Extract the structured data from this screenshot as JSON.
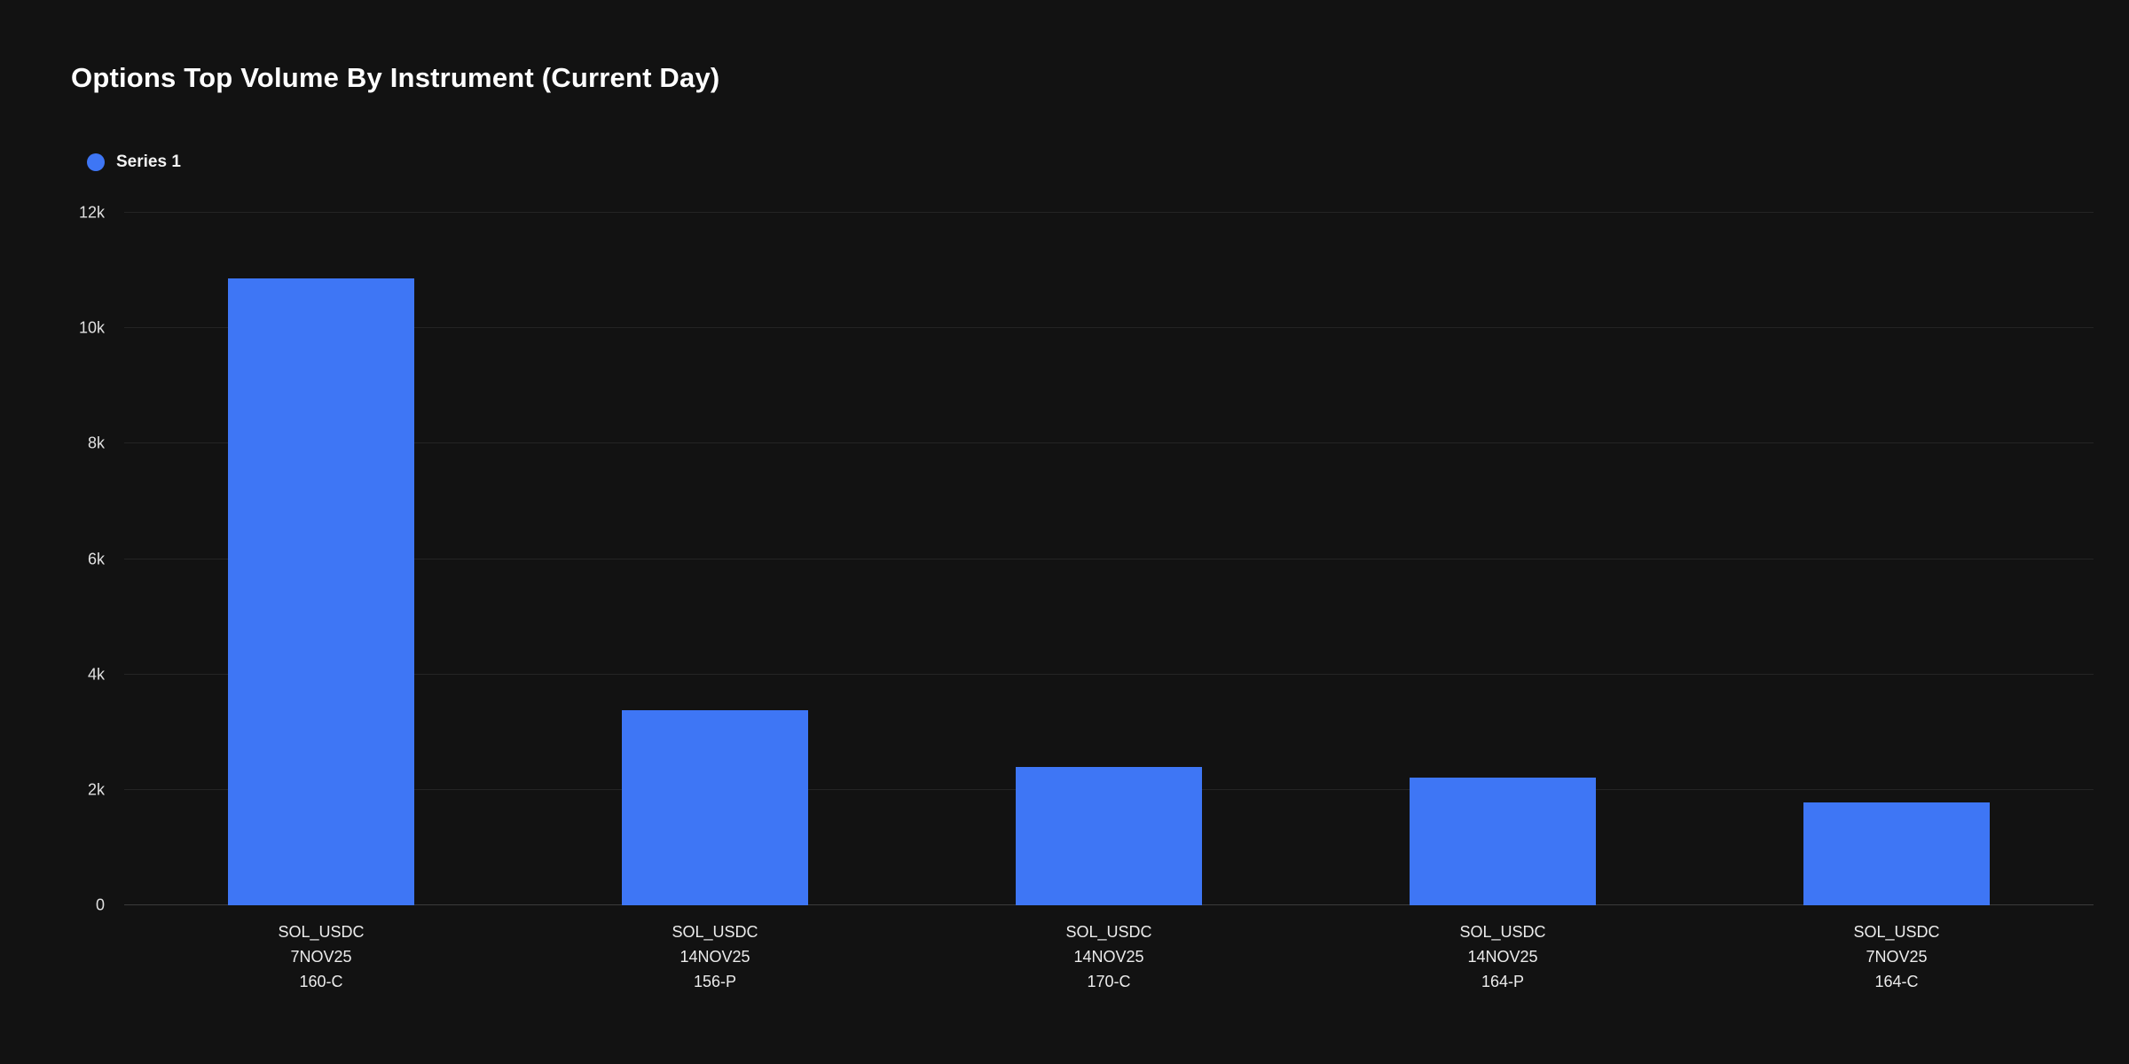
{
  "page": {
    "background": "#121212"
  },
  "header": {
    "title": "Options Top Volume By Instrument (Current Day)"
  },
  "legend": {
    "items": [
      {
        "label": "Series 1",
        "color": "#3E76F5"
      }
    ]
  },
  "chart_data": {
    "type": "bar",
    "title": "Options Top Volume By Instrument (Current Day)",
    "categories": [
      [
        "SOL_USDC",
        "7NOV25",
        "160-C"
      ],
      [
        "SOL_USDC",
        "14NOV25",
        "156-P"
      ],
      [
        "SOL_USDC",
        "14NOV25",
        "170-C"
      ],
      [
        "SOL_USDC",
        "14NOV25",
        "164-P"
      ],
      [
        "SOL_USDC",
        "7NOV25",
        "164-C"
      ]
    ],
    "series": [
      {
        "name": "Series 1",
        "color": "#3E76F5",
        "values": [
          10860,
          3380,
          2400,
          2210,
          1780
        ]
      }
    ],
    "xlabel": "",
    "ylabel": "",
    "ylim": [
      0,
      12000
    ],
    "yticks": [
      {
        "value": 0,
        "label": "0"
      },
      {
        "value": 2000,
        "label": "2k"
      },
      {
        "value": 4000,
        "label": "4k"
      },
      {
        "value": 6000,
        "label": "6k"
      },
      {
        "value": 8000,
        "label": "8k"
      },
      {
        "value": 10000,
        "label": "10k"
      },
      {
        "value": 12000,
        "label": "12k"
      }
    ],
    "grid": true,
    "legend_position": "top-left"
  }
}
